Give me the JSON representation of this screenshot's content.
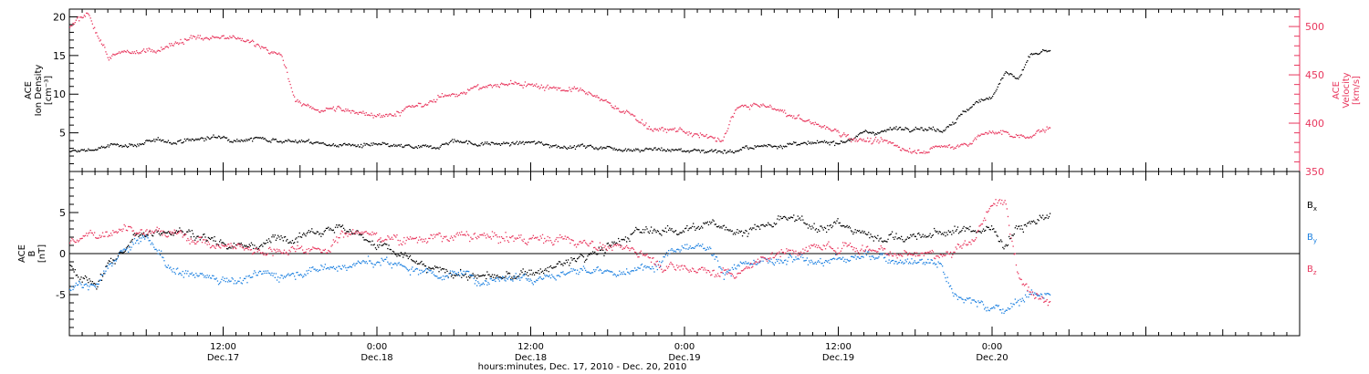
{
  "chart_data": [
    {
      "type": "scatter",
      "panel": "top",
      "ylabel_left": [
        "ACE",
        "Ion Density",
        "[cm⁻³]"
      ],
      "ylabel_right": [
        "ACE",
        "Velocity",
        "[km/s]"
      ],
      "ylim_left": [
        0,
        21
      ],
      "ylim_right": [
        350,
        518
      ],
      "yticks_left": [
        5,
        10,
        15,
        20
      ],
      "yticks_right": [
        350,
        400,
        450,
        500
      ],
      "right_axis_color": "#e8365d",
      "series": [
        {
          "axis": "left",
          "color": "#000000",
          "anchors_hours": [
            0,
            4,
            8,
            12,
            16,
            20,
            24,
            28,
            30,
            32,
            36,
            40,
            44,
            48,
            52,
            56,
            58,
            60,
            62,
            64,
            66,
            68,
            70,
            72,
            73,
            74,
            75,
            76.5
          ],
          "anchors_values": [
            2.5,
            3.5,
            4.0,
            4.5,
            4.3,
            3.6,
            3.3,
            3.0,
            4.2,
            3.6,
            3.7,
            3.3,
            3.1,
            2.8,
            2.8,
            3.7,
            3.4,
            4.0,
            5.0,
            5.5,
            6.0,
            5.5,
            8.0,
            10.0,
            13.0,
            12.0,
            15.0,
            15.5
          ]
        },
        {
          "axis": "right",
          "color": "#e8365d",
          "anchors_hours": [
            0,
            1.5,
            3,
            6,
            9,
            12,
            15,
            16.5,
            17.5,
            19,
            22,
            25,
            28,
            30,
            32,
            35,
            38,
            40,
            43,
            46,
            48,
            50,
            51,
            52,
            54,
            56,
            58,
            60,
            63,
            66,
            69,
            72,
            74,
            76.5
          ],
          "anchors_values": [
            500,
            512,
            468,
            475,
            488,
            488,
            482,
            470,
            425,
            415,
            413,
            410,
            420,
            433,
            437,
            442,
            438,
            432,
            415,
            392,
            392,
            384,
            382,
            418,
            418,
            410,
            400,
            391,
            380,
            373,
            376,
            392,
            386,
            395
          ]
        }
      ]
    },
    {
      "type": "scatter",
      "panel": "bottom",
      "ylabel": [
        "ACE",
        "B",
        "[nT]"
      ],
      "ylim": [
        -10,
        10
      ],
      "yticks": [
        -5,
        0,
        5
      ],
      "zero_line": true,
      "series": [
        {
          "name": "Bₓ",
          "color": "#000000",
          "anchors_hours": [
            0,
            2,
            5,
            8,
            12,
            15,
            18,
            21,
            25,
            28,
            31,
            34,
            38,
            41,
            44,
            47,
            48,
            50,
            51,
            53,
            56,
            60,
            62,
            66,
            68,
            70,
            72,
            73,
            74,
            76.5
          ],
          "anchors_values": [
            -1.5,
            -4.0,
            2.5,
            3.0,
            1.5,
            1.0,
            3.0,
            3.5,
            0.5,
            -2.0,
            -2.5,
            -3.0,
            -1.5,
            0.0,
            2.5,
            3.0,
            3.5,
            3.3,
            3.2,
            3.0,
            4.0,
            3.5,
            2.5,
            2.0,
            2.5,
            3.0,
            3.0,
            1.5,
            3.5,
            5.0
          ]
        },
        {
          "name": "Bᵧ",
          "color": "#1a7fe0",
          "anchors_hours": [
            0,
            2,
            4,
            6,
            8,
            12,
            16,
            20,
            24,
            28,
            32,
            36,
            40,
            44,
            46,
            48,
            50,
            51,
            52,
            56,
            60,
            64,
            66,
            68,
            69,
            70,
            72,
            73,
            74,
            75,
            76.5
          ],
          "anchors_values": [
            -4.5,
            -4.0,
            0.0,
            2.0,
            -2.0,
            -3.0,
            -2.5,
            -1.5,
            -1.0,
            -2.0,
            -3.0,
            -2.5,
            -2.0,
            -2.5,
            -0.5,
            1.5,
            1.0,
            -2.0,
            -1.5,
            -1.0,
            -0.5,
            -0.5,
            -0.5,
            -1.0,
            -5.0,
            -5.5,
            -6.5,
            -7.0,
            -5.5,
            -5.0,
            -4.5
          ]
        },
        {
          "name": "B_z",
          "color": "#e8365d",
          "anchors_hours": [
            0,
            2,
            4,
            6,
            8,
            12,
            16,
            20,
            22,
            24,
            28,
            32,
            36,
            40,
            44,
            46,
            48,
            50,
            52,
            54,
            56,
            60,
            64,
            66,
            68,
            70,
            71,
            72,
            73,
            74,
            75,
            76.5
          ],
          "anchors_values": [
            1.5,
            2.0,
            3.5,
            3.0,
            2.5,
            1.0,
            0.5,
            1.0,
            3.0,
            2.0,
            2.0,
            2.0,
            2.0,
            1.5,
            0.5,
            -1.0,
            -1.5,
            -2.0,
            -2.5,
            -0.5,
            0.5,
            1.0,
            0.5,
            0.2,
            0.0,
            0.5,
            3.5,
            6.0,
            6.5,
            -2.0,
            -5.0,
            -5.0
          ]
        }
      ]
    }
  ],
  "x_axis": {
    "range_hours": [
      0,
      96
    ],
    "ticks": [
      {
        "hours": 12,
        "time": "12:00",
        "date": "Dec.17"
      },
      {
        "hours": 24,
        "time": "0:00",
        "date": "Dec.18"
      },
      {
        "hours": 36,
        "time": "12:00",
        "date": "Dec.18"
      },
      {
        "hours": 48,
        "time": "0:00",
        "date": "Dec.19"
      },
      {
        "hours": 60,
        "time": "12:00",
        "date": "Dec.19"
      },
      {
        "hours": 72,
        "time": "0:00",
        "date": "Dec.20"
      }
    ],
    "label": "hours:minutes, Dec. 17, 2010 - Dec. 20, 2010"
  },
  "legend": [
    {
      "base": "B",
      "sub": "x",
      "color": "#000000"
    },
    {
      "base": "B",
      "sub": "y",
      "color": "#1a7fe0"
    },
    {
      "base": "B",
      "sub": "z",
      "color": "#e8365d"
    }
  ]
}
